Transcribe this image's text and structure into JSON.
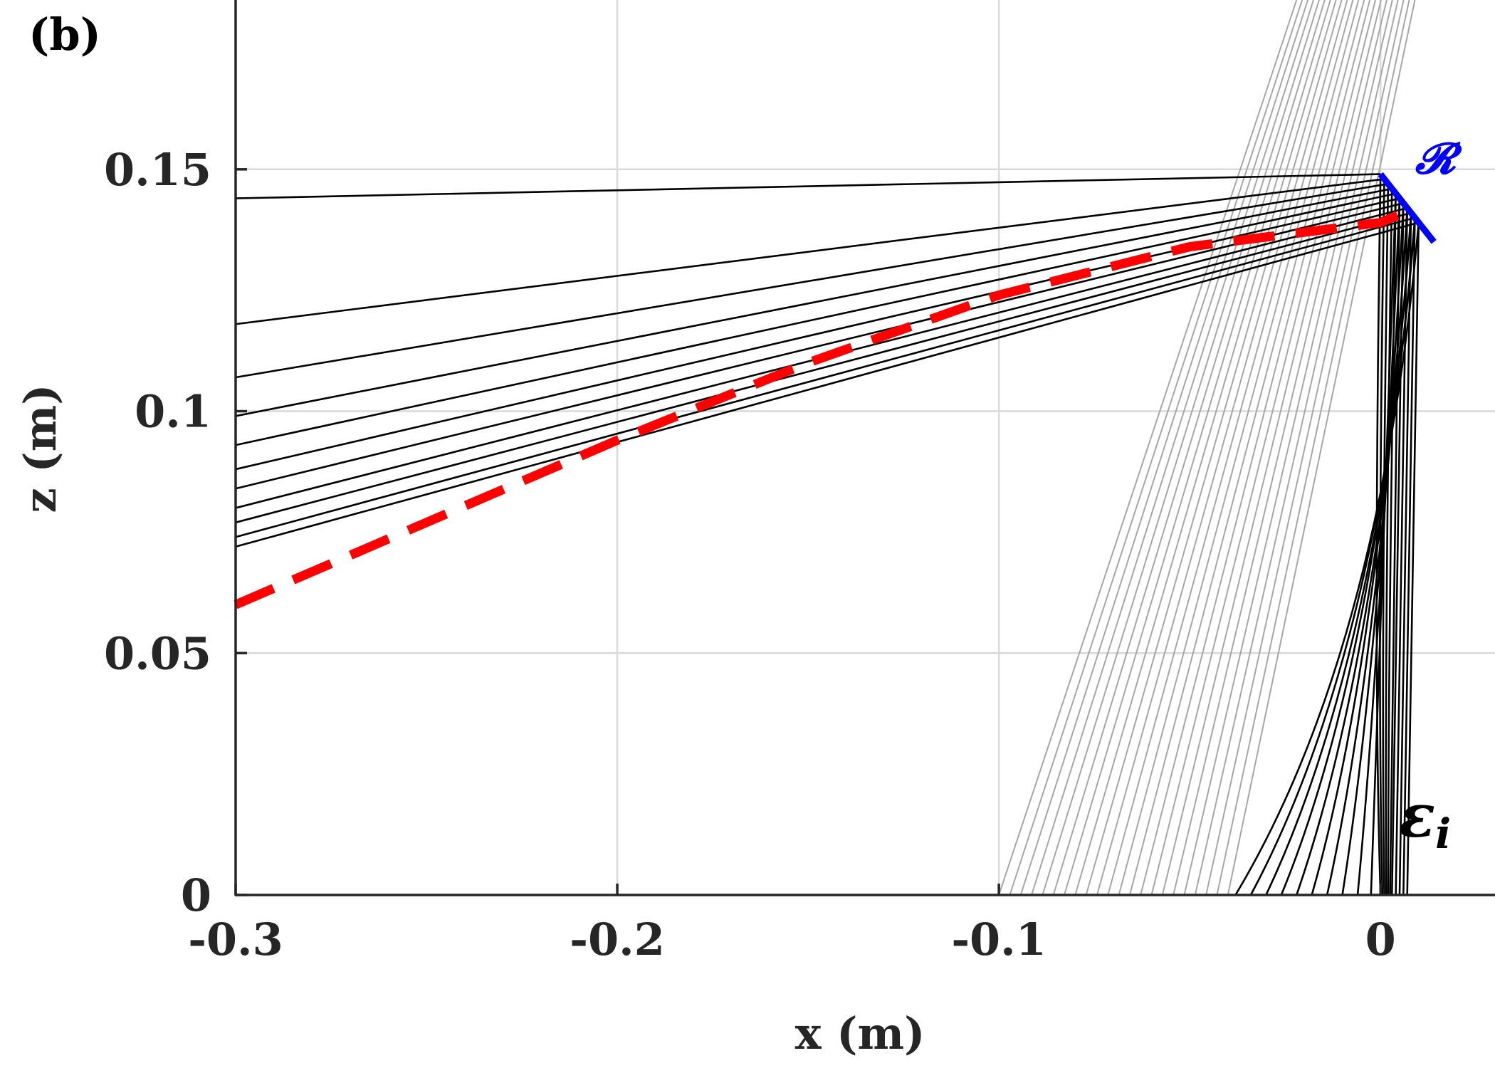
{
  "chart_data": {
    "type": "line",
    "panel_label": "(b)",
    "xlabel": "x (m)",
    "ylabel": "z (m)",
    "xlim": [
      -0.3,
      0.03
    ],
    "ylim": [
      0,
      0.185
    ],
    "grid": true,
    "x_ticks": [
      {
        "value": -0.3,
        "label": "-0.3"
      },
      {
        "value": -0.2,
        "label": "-0.2"
      },
      {
        "value": -0.1,
        "label": "-0.1"
      },
      {
        "value": 0,
        "label": "0"
      }
    ],
    "y_ticks": [
      {
        "value": 0,
        "label": "0"
      },
      {
        "value": 0.05,
        "label": "0.05"
      },
      {
        "value": 0.1,
        "label": "0.1"
      },
      {
        "value": 0.15,
        "label": "0.15"
      }
    ],
    "colors": {
      "rays": "#000000",
      "incident_rays": "#a6a6a6",
      "envelope": "#ff0000",
      "reflector": "#0000ff",
      "grid": "#d9d9d9",
      "axis": "#262626"
    },
    "incident_rays": {
      "count": 22,
      "bottom": {
        "z": 0,
        "x_start": -0.1,
        "x_end": -0.04
      },
      "top": {
        "z": 0.185,
        "x_start": -0.022,
        "x_end": 0.009
      }
    },
    "envelope": {
      "points": [
        [
          -0.3,
          0.06
        ],
        [
          -0.25,
          0.077
        ],
        [
          -0.2,
          0.094
        ],
        [
          -0.15,
          0.11
        ],
        [
          -0.1,
          0.124
        ],
        [
          -0.05,
          0.134
        ],
        [
          0.0,
          0.139
        ],
        [
          0.006,
          0.141
        ]
      ]
    },
    "reflector": {
      "label": "𝓡",
      "points": [
        [
          0.0,
          0.149
        ],
        [
          0.014,
          0.135
        ]
      ]
    },
    "ray_annotation": {
      "main": "ε",
      "sub": "i",
      "position": [
        0.012,
        0.011
      ]
    },
    "rays": [
      {
        "x0": 0.0,
        "refl": [
          0.0,
          0.149
        ],
        "z_left": 0.144,
        "ctrl": [
          -0.002,
          0.05
        ]
      },
      {
        "x0": 0.0005,
        "refl": [
          0.001,
          0.148
        ],
        "z_left": 0.118,
        "ctrl": [
          -0.001,
          0.05
        ]
      },
      {
        "x0": 0.001,
        "refl": [
          0.002,
          0.147
        ],
        "z_left": 0.107,
        "ctrl": [
          0.0,
          0.05
        ]
      },
      {
        "x0": 0.0015,
        "refl": [
          0.003,
          0.146
        ],
        "z_left": 0.099,
        "ctrl": [
          0.001,
          0.05
        ]
      },
      {
        "x0": 0.002,
        "refl": [
          0.004,
          0.145
        ],
        "z_left": 0.093,
        "ctrl": [
          0.002,
          0.05
        ]
      },
      {
        "x0": 0.0025,
        "refl": [
          0.005,
          0.144
        ],
        "z_left": 0.088,
        "ctrl": [
          0.003,
          0.05
        ]
      },
      {
        "x0": 0.003,
        "refl": [
          0.006,
          0.143
        ],
        "z_left": 0.084,
        "ctrl": [
          0.004,
          0.05
        ]
      },
      {
        "x0": 0.004,
        "refl": [
          0.007,
          0.142
        ],
        "z_left": 0.08,
        "ctrl": [
          0.005,
          0.05
        ]
      },
      {
        "x0": 0.005,
        "refl": [
          0.008,
          0.141
        ],
        "z_left": 0.077,
        "ctrl": [
          0.006,
          0.05
        ]
      },
      {
        "x0": 0.006,
        "refl": [
          0.009,
          0.14
        ],
        "z_left": 0.074,
        "ctrl": [
          0.007,
          0.05
        ]
      },
      {
        "x0": 0.007,
        "refl": [
          0.01,
          0.139
        ],
        "z_left": 0.072,
        "ctrl": [
          0.008,
          0.05
        ]
      },
      {
        "x0": -0.0025,
        "refl": [
          0.004,
          0.145
        ],
        "z_left": 0.0,
        "ctrl": [
          0.0,
          0.05
        ]
      },
      {
        "x0": -0.006,
        "refl": [
          0.005,
          0.144
        ],
        "z_left": 0.0,
        "ctrl": [
          0.0,
          0.05
        ]
      },
      {
        "x0": -0.01,
        "refl": [
          0.006,
          0.143
        ],
        "z_left": 0.0,
        "ctrl": [
          0.0,
          0.05
        ]
      },
      {
        "x0": -0.014,
        "refl": [
          0.007,
          0.142
        ],
        "z_left": 0.0,
        "ctrl": [
          0.0,
          0.05
        ]
      },
      {
        "x0": -0.018,
        "refl": [
          0.007,
          0.141
        ],
        "z_left": 0.0,
        "ctrl": [
          0.0,
          0.05
        ]
      },
      {
        "x0": -0.022,
        "refl": [
          0.008,
          0.141
        ],
        "z_left": 0.0,
        "ctrl": [
          0.0,
          0.05
        ]
      },
      {
        "x0": -0.026,
        "refl": [
          0.008,
          0.14
        ],
        "z_left": 0.0,
        "ctrl": [
          0.0,
          0.05
        ]
      },
      {
        "x0": -0.03,
        "refl": [
          0.009,
          0.14
        ],
        "z_left": 0.0,
        "ctrl": [
          0.0,
          0.05
        ]
      },
      {
        "x0": -0.034,
        "refl": [
          0.009,
          0.139
        ],
        "z_left": 0.0,
        "ctrl": [
          0.0,
          0.05
        ]
      },
      {
        "x0": -0.038,
        "refl": [
          0.01,
          0.139
        ],
        "z_left": 0.0,
        "ctrl": [
          0.0,
          0.05
        ]
      }
    ]
  }
}
